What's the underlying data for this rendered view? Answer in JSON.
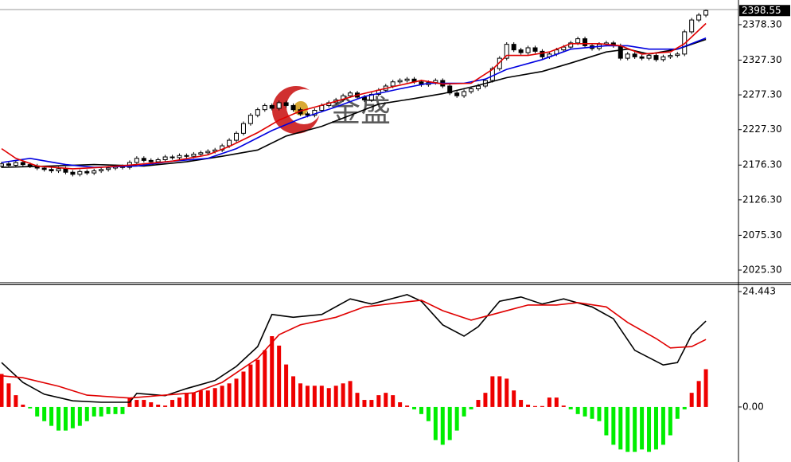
{
  "chart_data": [
    {
      "type": "candlestick",
      "watermark": "金盛",
      "last_price": 2398.55,
      "ylim": [
        2007,
        2400
      ],
      "yticks": [
        {
          "value": 2378.3,
          "label": "2378.30"
        },
        {
          "value": 2327.3,
          "label": "2327.30"
        },
        {
          "value": 2277.3,
          "label": "2277.30"
        },
        {
          "value": 2227.3,
          "label": "2227.30"
        },
        {
          "value": 2176.3,
          "label": "2176.30"
        },
        {
          "value": 2126.3,
          "label": "2126.30"
        },
        {
          "value": 2075.3,
          "label": "2075.30"
        },
        {
          "value": 2025.3,
          "label": "2025.30"
        }
      ],
      "up_color": "#ffffff",
      "down_color": "#000000",
      "open": [
        2175,
        2178,
        2176,
        2180,
        2177,
        2175,
        2172,
        2170,
        2168,
        2171,
        2166,
        2163,
        2167,
        2165,
        2168,
        2170,
        2172,
        2174,
        2173,
        2180,
        2186,
        2183,
        2181,
        2184,
        2188,
        2187,
        2190,
        2189,
        2192,
        2194,
        2196,
        2198,
        2204,
        2212,
        2222,
        2236,
        2248,
        2256,
        2262,
        2258,
        2266,
        2262,
        2256,
        2250,
        2248,
        2255,
        2262,
        2266,
        2270,
        2276,
        2280,
        2274,
        2270,
        2278,
        2284,
        2290,
        2296,
        2298,
        2300,
        2296,
        2292,
        2295,
        2298,
        2290,
        2280,
        2276,
        2282,
        2286,
        2290,
        2298,
        2315,
        2330,
        2350,
        2342,
        2338,
        2345,
        2340,
        2332,
        2336,
        2342,
        2346,
        2352,
        2358,
        2348,
        2344,
        2350,
        2352,
        2348,
        2330,
        2336,
        2332,
        2330,
        2334,
        2328,
        2332,
        2334,
        2336,
        2368,
        2385,
        2392
      ],
      "high": [
        2181,
        2181,
        2183,
        2183,
        2180,
        2178,
        2175,
        2173,
        2174,
        2174,
        2169,
        2170,
        2170,
        2171,
        2173,
        2175,
        2177,
        2177,
        2183,
        2189,
        2189,
        2186,
        2187,
        2191,
        2191,
        2193,
        2193,
        2195,
        2197,
        2199,
        2201,
        2207,
        2215,
        2225,
        2239,
        2251,
        2259,
        2265,
        2265,
        2269,
        2269,
        2265,
        2259,
        2253,
        2258,
        2265,
        2269,
        2273,
        2279,
        2283,
        2283,
        2277,
        2281,
        2287,
        2293,
        2299,
        2301,
        2303,
        2303,
        2299,
        2298,
        2301,
        2301,
        2293,
        2283,
        2285,
        2289,
        2293,
        2301,
        2318,
        2333,
        2353,
        2353,
        2345,
        2348,
        2348,
        2343,
        2339,
        2345,
        2349,
        2355,
        2361,
        2361,
        2351,
        2353,
        2355,
        2355,
        2351,
        2339,
        2339,
        2335,
        2337,
        2337,
        2335,
        2337,
        2339,
        2371,
        2388,
        2395,
        2400
      ],
      "low": [
        2172,
        2173,
        2173,
        2174,
        2172,
        2169,
        2167,
        2165,
        2165,
        2163,
        2160,
        2160,
        2162,
        2162,
        2165,
        2167,
        2169,
        2170,
        2170,
        2177,
        2180,
        2178,
        2178,
        2181,
        2184,
        2184,
        2186,
        2186,
        2189,
        2191,
        2193,
        2195,
        2201,
        2209,
        2219,
        2233,
        2245,
        2253,
        2255,
        2255,
        2259,
        2253,
        2247,
        2245,
        2245,
        2252,
        2259,
        2263,
        2267,
        2273,
        2271,
        2267,
        2267,
        2275,
        2281,
        2287,
        2293,
        2295,
        2293,
        2289,
        2289,
        2292,
        2287,
        2277,
        2273,
        2273,
        2279,
        2283,
        2287,
        2295,
        2312,
        2327,
        2339,
        2335,
        2335,
        2337,
        2329,
        2329,
        2333,
        2339,
        2343,
        2349,
        2345,
        2341,
        2341,
        2347,
        2345,
        2327,
        2327,
        2329,
        2327,
        2327,
        2325,
        2325,
        2329,
        2331,
        2333,
        2365,
        2382,
        2389
      ],
      "close": [
        2178,
        2176,
        2180,
        2177,
        2175,
        2172,
        2170,
        2168,
        2171,
        2166,
        2163,
        2167,
        2165,
        2168,
        2170,
        2172,
        2174,
        2173,
        2180,
        2186,
        2183,
        2181,
        2184,
        2188,
        2187,
        2190,
        2189,
        2192,
        2194,
        2196,
        2198,
        2204,
        2212,
        2222,
        2236,
        2248,
        2256,
        2262,
        2258,
        2266,
        2262,
        2256,
        2250,
        2248,
        2255,
        2262,
        2266,
        2270,
        2276,
        2280,
        2274,
        2270,
        2278,
        2284,
        2290,
        2296,
        2298,
        2300,
        2296,
        2292,
        2295,
        2298,
        2290,
        2280,
        2276,
        2282,
        2286,
        2290,
        2298,
        2315,
        2330,
        2350,
        2342,
        2338,
        2345,
        2340,
        2332,
        2336,
        2342,
        2346,
        2352,
        2358,
        2348,
        2344,
        2350,
        2352,
        2348,
        2330,
        2336,
        2332,
        2330,
        2334,
        2328,
        2332,
        2334,
        2336,
        2368,
        2385,
        2392,
        2398.55
      ],
      "series": [
        {
          "color": "#000000",
          "x": [
            0,
            7,
            13,
            20,
            26,
            31,
            36,
            40,
            45,
            49,
            53,
            58,
            62,
            67,
            71,
            76,
            80,
            85,
            88,
            91,
            95,
            99
          ],
          "values": [
            2173,
            2175,
            2177,
            2175,
            2181,
            2189,
            2198,
            2218,
            2232,
            2248,
            2264,
            2272,
            2279,
            2291,
            2302,
            2311,
            2323,
            2339,
            2343,
            2336,
            2343,
            2357
          ]
        },
        {
          "color": "#0000e0",
          "x": [
            0,
            4,
            9,
            13,
            19,
            24,
            29,
            33,
            38,
            42,
            47,
            51,
            56,
            60,
            65,
            68,
            71,
            76,
            80,
            85,
            88,
            91,
            95,
            97,
            99
          ],
          "values": [
            2180,
            2186,
            2177,
            2173,
            2175,
            2182,
            2186,
            2200,
            2226,
            2243,
            2260,
            2275,
            2286,
            2294,
            2294,
            2300,
            2314,
            2328,
            2343,
            2348,
            2348,
            2343,
            2343,
            2351,
            2359
          ]
        },
        {
          "color": "#e00000",
          "x": [
            0,
            2,
            5,
            10,
            14,
            19,
            24,
            29,
            32,
            36,
            39,
            42,
            47,
            50,
            55,
            59,
            62,
            66,
            69,
            71,
            74,
            77,
            80,
            84,
            87,
            90,
            94,
            96,
            99
          ],
          "values": [
            2200,
            2186,
            2175,
            2171,
            2173,
            2177,
            2182,
            2191,
            2203,
            2223,
            2241,
            2254,
            2268,
            2277,
            2289,
            2298,
            2293,
            2294,
            2314,
            2334,
            2334,
            2339,
            2351,
            2351,
            2348,
            2336,
            2339,
            2351,
            2380
          ]
        }
      ]
    },
    {
      "type": "macd",
      "ylim": [
        -10.3,
        25.8
      ],
      "yticks": [
        24.443,
        {
          "value": 0,
          "label": "0.00"
        }
      ],
      "up_color": "#ee0000",
      "down_color": "#00ee00",
      "values": [
        7,
        5,
        2.5,
        0.5,
        -0.3,
        -2,
        -3,
        -4,
        -5,
        -5,
        -4.5,
        -4,
        -3,
        -2,
        -2,
        -1.5,
        -1.5,
        -1.5,
        2,
        1.5,
        1.5,
        1,
        0.5,
        0.3,
        1.5,
        2,
        3,
        3,
        3.5,
        3.5,
        4,
        4.5,
        5,
        6,
        7.5,
        9,
        10,
        12,
        15,
        13,
        9,
        6.5,
        5,
        4.5,
        4.5,
        4.5,
        4,
        4.5,
        5,
        5.5,
        3,
        1.5,
        1.5,
        2.5,
        3,
        2.5,
        1,
        0.3,
        -0.5,
        -1.5,
        -3,
        -7,
        -8,
        -7,
        -5,
        -2,
        -0.5,
        1.5,
        3,
        6.5,
        6.5,
        6,
        3.5,
        1.5,
        0.5,
        0.2,
        0.2,
        2,
        2,
        0.3,
        -0.5,
        -1.5,
        -2,
        -2.5,
        -3,
        -6,
        -8,
        -9,
        -9.5,
        -9.5,
        -9,
        -9.5,
        -9,
        -8,
        -6,
        -2.5,
        -0.5,
        3,
        5.5,
        8
      ],
      "series": [
        {
          "color": "#000000",
          "x": [
            0,
            3,
            6,
            10,
            14,
            18,
            19,
            23,
            26,
            30,
            33,
            36,
            38,
            41,
            45,
            49,
            52,
            57,
            59,
            62,
            65,
            67,
            70,
            73,
            76,
            79,
            83,
            86,
            89,
            93,
            95,
            97,
            99
          ],
          "values": [
            9.4,
            5.2,
            2.7,
            1.3,
            1,
            1,
            2.9,
            2.4,
            3.9,
            5.6,
            8.6,
            12.8,
            19.6,
            19,
            19.6,
            22.9,
            21.8,
            23.8,
            22.4,
            17.4,
            15,
            17,
            22.4,
            23.3,
            21.8,
            22.9,
            21.2,
            18.7,
            12,
            8.9,
            9.4,
            15.3,
            18.2
          ]
        },
        {
          "color": "#e00000",
          "x": [
            0,
            3,
            8,
            12,
            18,
            22,
            27,
            31,
            36,
            39,
            42,
            47,
            51,
            56,
            59,
            62,
            66,
            69,
            74,
            78,
            81,
            85,
            88,
            92,
            94,
            97,
            99
          ],
          "values": [
            6.6,
            6.2,
            4.4,
            2.5,
            1.9,
            2.4,
            3,
            5.2,
            10.3,
            15.3,
            17.4,
            19,
            21.2,
            22.1,
            22.6,
            20.4,
            18.4,
            19.6,
            21.6,
            21.6,
            22.1,
            21.2,
            17.9,
            14.5,
            12.5,
            12.8,
            14.3
          ]
        }
      ]
    }
  ]
}
